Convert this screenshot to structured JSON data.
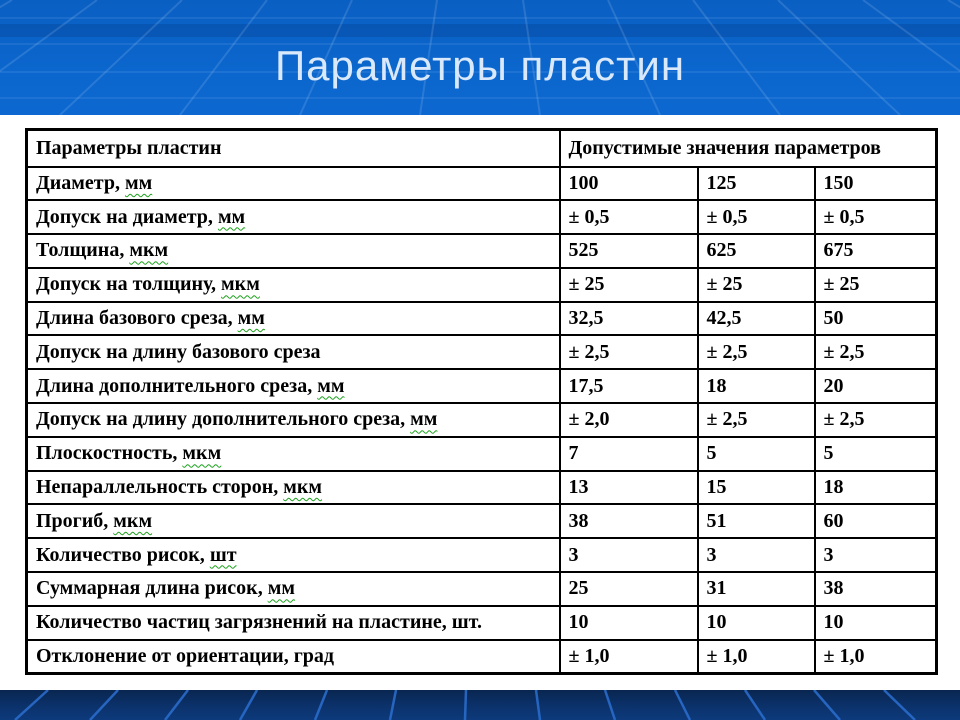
{
  "slide": {
    "title": "Параметры пластин"
  },
  "colors": {
    "top_background": "#0B66CD",
    "bottom_band": "#0B3067",
    "band_ray_line": "#2B6FD0",
    "title_text": "#D9E9FB",
    "table_border": "#000000",
    "table_background": "#FFFFFF",
    "spellcheck_underline": "#1CA01C"
  },
  "table": {
    "header": {
      "param": "Параметры пластин",
      "values_title": "Допустимые значения параметров"
    },
    "rows": [
      {
        "param": "Диаметр, мм",
        "squiggle": "мм",
        "values": [
          "100",
          "125",
          "150"
        ]
      },
      {
        "param": "Допуск на диаметр, мм",
        "squiggle": "мм",
        "values": [
          "± 0,5",
          "± 0,5",
          "± 0,5"
        ]
      },
      {
        "param": "Толщина, мкм",
        "squiggle": "мкм",
        "values": [
          "525",
          "625",
          "675"
        ]
      },
      {
        "param": "Допуск на толщину, мкм",
        "squiggle": "мкм",
        "values": [
          "± 25",
          "± 25",
          "± 25"
        ]
      },
      {
        "param": "Длина базового среза, мм",
        "squiggle": "мм",
        "values": [
          "32,5",
          "42,5",
          "50"
        ]
      },
      {
        "param": "Допуск на длину базового среза",
        "squiggle": "",
        "values": [
          "± 2,5",
          "± 2,5",
          "± 2,5"
        ]
      },
      {
        "param": "Длина дополнительного среза, мм",
        "squiggle": "мм",
        "values": [
          "17,5",
          "18",
          "20"
        ]
      },
      {
        "param": "Допуск на длину дополнительного среза, мм",
        "squiggle": "мм",
        "values": [
          "± 2,0",
          "± 2,5",
          "± 2,5"
        ]
      },
      {
        "param": "Плоскостность, мкм",
        "squiggle": "мкм",
        "values": [
          "7",
          "5",
          "5"
        ]
      },
      {
        "param": "Непараллельность сторон, мкм",
        "squiggle": "мкм",
        "values": [
          "13",
          "15",
          "18"
        ]
      },
      {
        "param": "Прогиб, мкм",
        "squiggle": "мкм",
        "values": [
          "38",
          "51",
          "60"
        ]
      },
      {
        "param": "Количество рисок, шт",
        "squiggle": "шт",
        "values": [
          "3",
          "3",
          "3"
        ]
      },
      {
        "param": "Суммарная длина рисок, мм",
        "squiggle": "мм",
        "values": [
          "25",
          "31",
          "38"
        ]
      },
      {
        "param": "Количество частиц загрязнений на пластине, шт.",
        "squiggle": "",
        "values": [
          "10",
          "10",
          "10"
        ]
      },
      {
        "param": "Отклонение от ориентации, град",
        "squiggle": "",
        "values": [
          "± 1,0",
          "± 1,0",
          "± 1,0"
        ]
      }
    ]
  }
}
